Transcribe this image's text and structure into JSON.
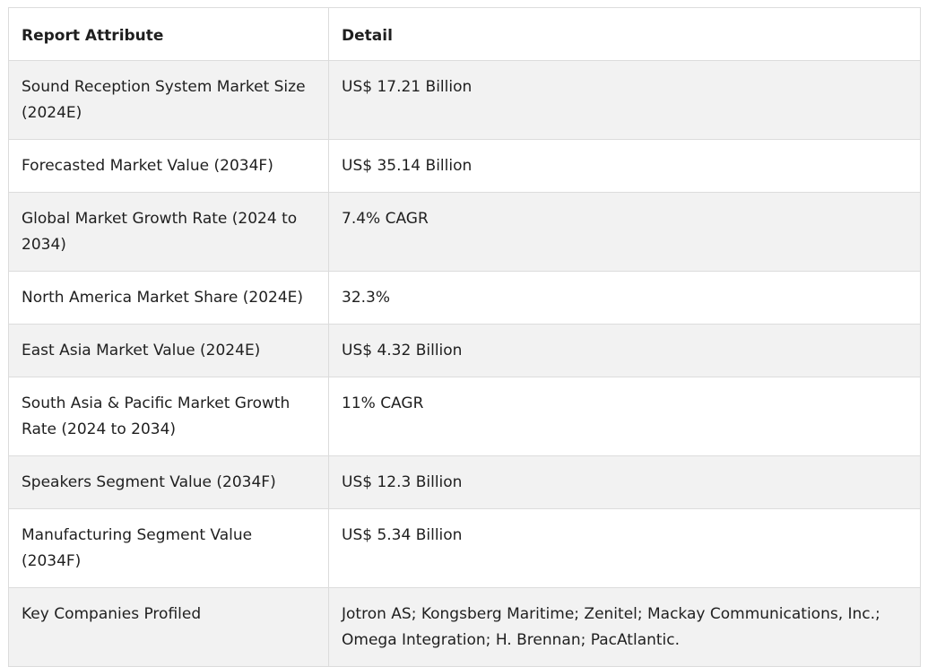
{
  "table": {
    "headers": [
      "Report Attribute",
      "Detail"
    ],
    "rows": [
      [
        "Sound Reception System Market Size (2024E)",
        "US$ 17.21 Billion"
      ],
      [
        "Forecasted Market Value (2034F)",
        "US$ 35.14 Billion"
      ],
      [
        "Global Market Growth Rate (2024 to 2034)",
        "7.4% CAGR"
      ],
      [
        "North America Market Share (2024E)",
        "32.3%"
      ],
      [
        "East Asia Market Value (2024E)",
        "US$ 4.32 Billion"
      ],
      [
        "South Asia & Pacific Market Growth Rate (2024 to 2034)",
        "11% CAGR"
      ],
      [
        "Speakers Segment Value (2034F)",
        "US$ 12.3 Billion"
      ],
      [
        "Manufacturing Segment Value (2034F)",
        "US$ 5.34 Billion"
      ],
      [
        "Key Companies Profiled",
        "Jotron AS; Kongsberg Maritime; Zenitel; Mackay Communications, Inc.; Omega Integration; H. Brennan; PacAtlantic."
      ]
    ]
  }
}
